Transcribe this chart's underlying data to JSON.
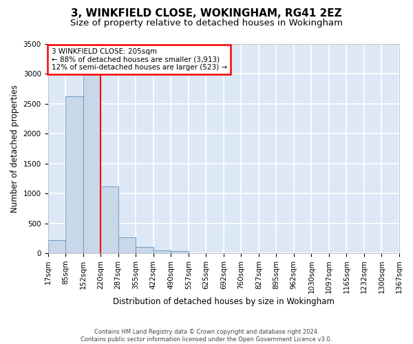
{
  "title": "3, WINKFIELD CLOSE, WOKINGHAM, RG41 2EZ",
  "subtitle": "Size of property relative to detached houses in Wokingham",
  "xlabel": "Distribution of detached houses by size in Wokingham",
  "ylabel": "Number of detached properties",
  "footer_line1": "Contains HM Land Registry data © Crown copyright and database right 2024.",
  "footer_line2": "Contains public sector information licensed under the Open Government Licence v3.0.",
  "bin_edge_labels": [
    "17sqm",
    "85sqm",
    "152sqm",
    "220sqm",
    "287sqm",
    "355sqm",
    "422sqm",
    "490sqm",
    "557sqm",
    "625sqm",
    "692sqm",
    "760sqm",
    "827sqm",
    "895sqm",
    "962sqm",
    "1030sqm",
    "1097sqm",
    "1165sqm",
    "1232sqm",
    "1300sqm",
    "1367sqm"
  ],
  "bar_values": [
    220,
    2630,
    3330,
    1120,
    270,
    100,
    50,
    30,
    0,
    0,
    0,
    0,
    0,
    0,
    0,
    0,
    0,
    0,
    0,
    0
  ],
  "bar_color": "#c8d8e8",
  "bar_edgecolor": "#6090c0",
  "property_line_x": 2.5,
  "annotation_text_line1": "3 WINKFIELD CLOSE: 205sqm",
  "annotation_text_line2": "← 88% of detached houses are smaller (3,913)",
  "annotation_text_line3": "12% of semi-detached houses are larger (523) →",
  "annotation_boxcolor": "white",
  "annotation_edgecolor": "red",
  "line_color": "red",
  "ylim_min": 0,
  "ylim_max": 3500,
  "yticks": [
    0,
    500,
    1000,
    1500,
    2000,
    2500,
    3000,
    3500
  ],
  "background_color": "#dce8f5",
  "grid_color": "white",
  "title_fontsize": 11,
  "subtitle_fontsize": 9.5,
  "ylabel_fontsize": 8.5,
  "xlabel_fontsize": 8.5,
  "tick_fontsize": 7.5,
  "annotation_fontsize": 7.5
}
